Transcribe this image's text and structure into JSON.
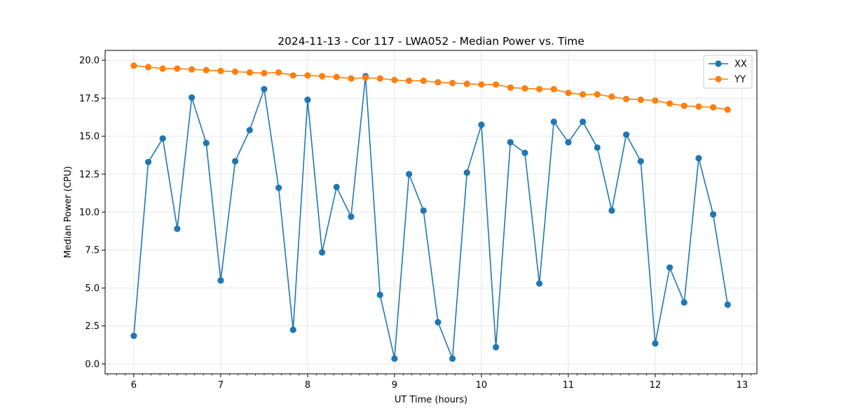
{
  "chart_data": {
    "type": "line",
    "title": "2024-11-13 - Cor 117 - LWA052 - Median Power vs. Time",
    "xlabel": "UT Time (hours)",
    "ylabel": "Median Power (CPU)",
    "xlim": [
      5.67,
      13.17
    ],
    "ylim": [
      -0.65,
      20.65
    ],
    "xticks": [
      6,
      7,
      8,
      9,
      10,
      11,
      12,
      13
    ],
    "xtick_labels": [
      "6",
      "7",
      "8",
      "9",
      "10",
      "11",
      "12",
      "13"
    ],
    "yticks": [
      0,
      2.5,
      5,
      7.5,
      10,
      12.5,
      15,
      17.5,
      20
    ],
    "ytick_labels": [
      "0.0",
      "2.5",
      "5.0",
      "7.5",
      "10.0",
      "12.5",
      "15.0",
      "17.5",
      "20.0"
    ],
    "grid": true,
    "legend_position": "top-right",
    "x": [
      6.0,
      6.1667,
      6.3333,
      6.5,
      6.6667,
      6.8333,
      7.0,
      7.1667,
      7.3333,
      7.5,
      7.6667,
      7.8333,
      8.0,
      8.1667,
      8.3333,
      8.5,
      8.6667,
      8.8333,
      9.0,
      9.1667,
      9.3333,
      9.5,
      9.6667,
      9.8333,
      10.0,
      10.1667,
      10.3333,
      10.5,
      10.6667,
      10.8333,
      11.0,
      11.1667,
      11.3333,
      11.5,
      11.6667,
      11.8333,
      12.0,
      12.1667,
      12.3333,
      12.5,
      12.6667,
      12.8333
    ],
    "series": [
      {
        "name": "XX",
        "color": "#1f77b4",
        "values": [
          1.85,
          13.3,
          14.85,
          8.9,
          17.55,
          14.55,
          5.5,
          13.35,
          15.4,
          18.1,
          11.6,
          2.25,
          17.4,
          7.35,
          11.65,
          9.7,
          18.95,
          4.55,
          0.35,
          12.5,
          10.1,
          2.75,
          0.35,
          12.6,
          15.75,
          1.1,
          14.6,
          13.9,
          5.3,
          15.95,
          14.6,
          15.95,
          14.25,
          10.1,
          15.1,
          13.35,
          1.35,
          6.35,
          4.05,
          13.55,
          9.85,
          3.9
        ]
      },
      {
        "name": "YY",
        "color": "#ff7f0e",
        "values": [
          19.65,
          19.55,
          19.45,
          19.45,
          19.4,
          19.35,
          19.3,
          19.25,
          19.2,
          19.15,
          19.2,
          19.0,
          19.0,
          18.95,
          18.9,
          18.8,
          18.85,
          18.8,
          18.7,
          18.65,
          18.65,
          18.55,
          18.5,
          18.45,
          18.4,
          18.4,
          18.2,
          18.15,
          18.1,
          18.1,
          17.85,
          17.75,
          17.75,
          17.6,
          17.45,
          17.4,
          17.35,
          17.15,
          17.0,
          16.95,
          16.9,
          16.75
        ]
      }
    ]
  }
}
